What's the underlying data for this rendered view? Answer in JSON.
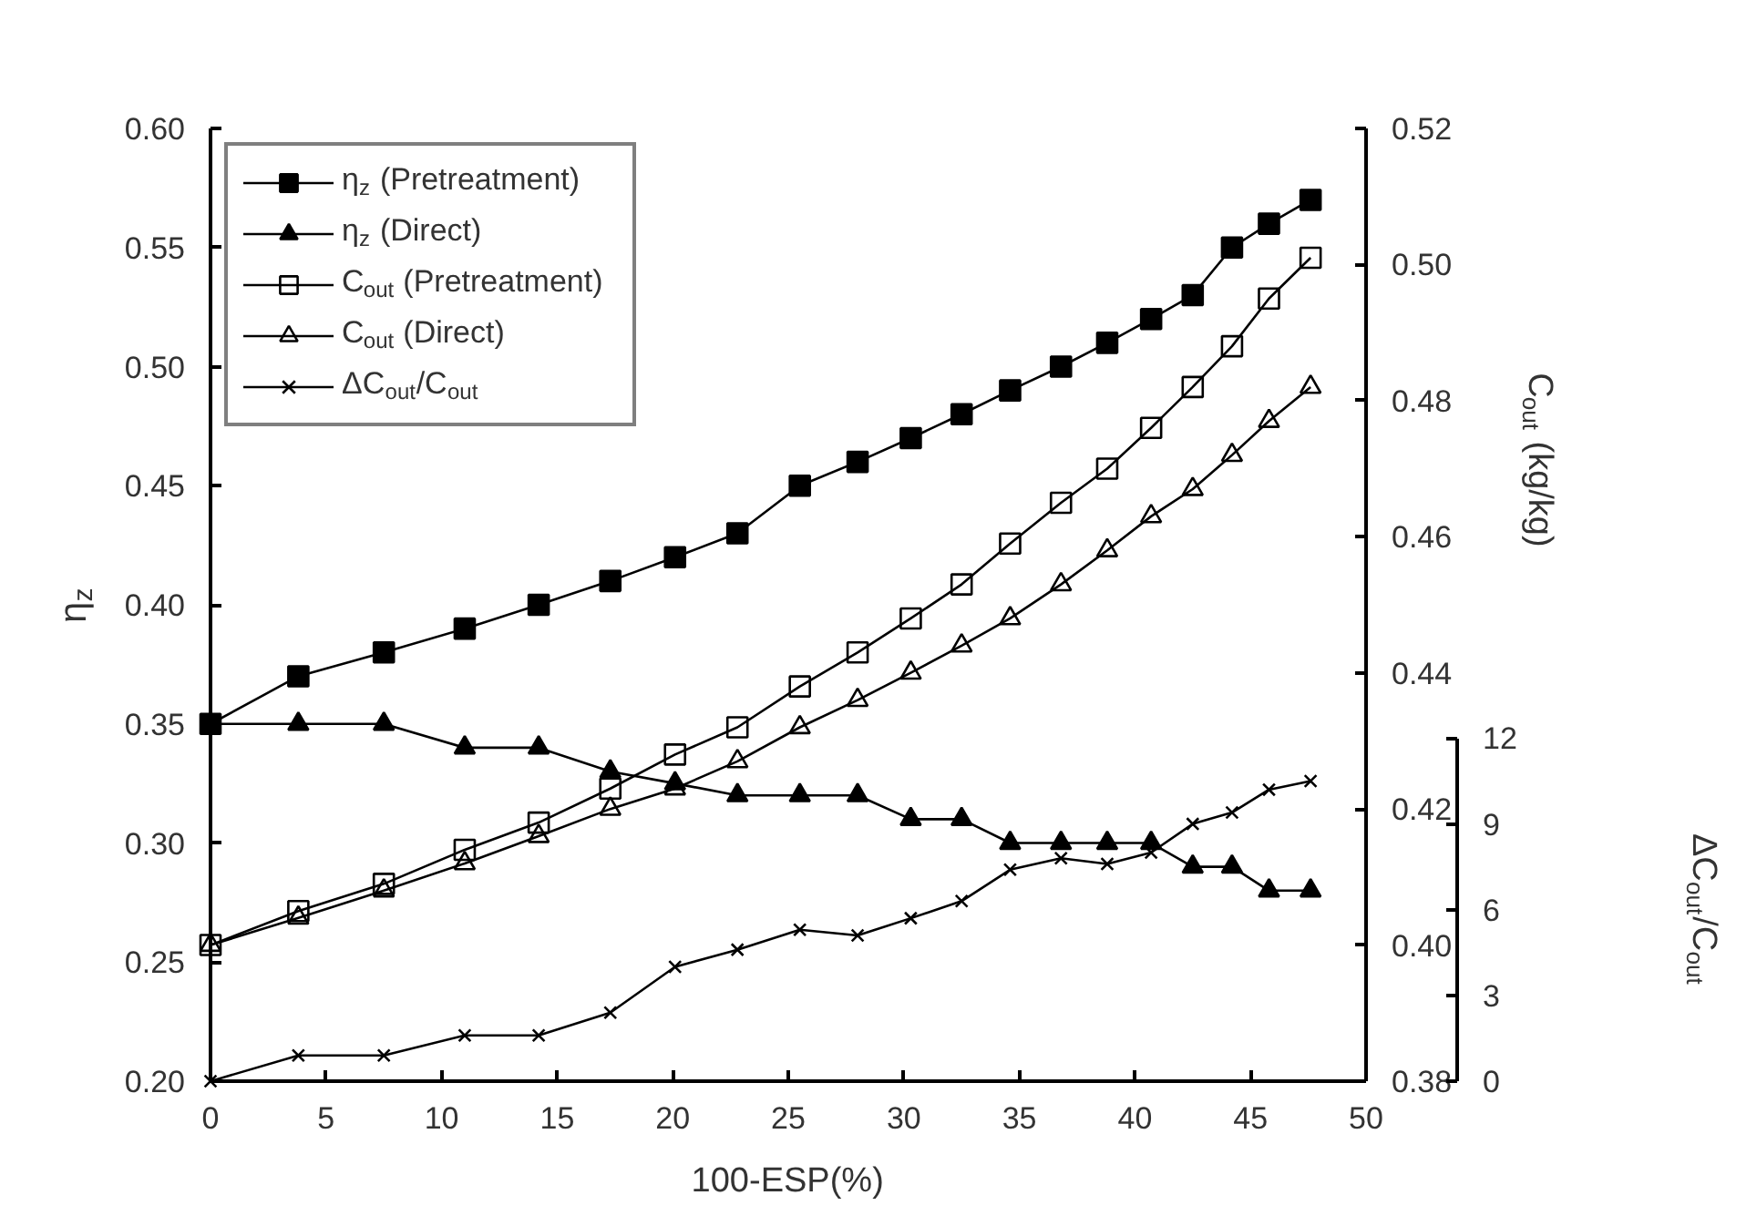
{
  "chart_data": {
    "type": "line",
    "xlabel": "100-ESP(%)",
    "ylabel": "η$_{z}$",
    "y2label": "C$_{out}$ (kg/kg)",
    "y3label": "ΔC$_{out}$/C$_{out}$",
    "x": [
      0,
      3.8,
      7.5,
      11.0,
      14.2,
      17.3,
      20.1,
      22.8,
      25.5,
      28.0,
      30.3,
      32.5,
      34.6,
      36.8,
      38.8,
      40.7,
      42.5,
      44.2,
      45.8,
      47.6
    ],
    "xlim": [
      0,
      50
    ],
    "xticks": [
      0,
      5,
      10,
      15,
      20,
      25,
      30,
      35,
      40,
      45,
      50
    ],
    "ylim": [
      0.2,
      0.6
    ],
    "yticks": [
      {
        "value": 0.2,
        "label": "0.20"
      },
      {
        "value": 0.25,
        "label": "0.25"
      },
      {
        "value": 0.3,
        "label": "0.30"
      },
      {
        "value": 0.35,
        "label": "0.35"
      },
      {
        "value": 0.4,
        "label": "0.40"
      },
      {
        "value": 0.45,
        "label": "0.45"
      },
      {
        "value": 0.5,
        "label": "0.50"
      },
      {
        "value": 0.55,
        "label": "0.55"
      },
      {
        "value": 0.6,
        "label": "0.60"
      }
    ],
    "y2lim": [
      0.38,
      0.52
    ],
    "y2ticks": [
      0.38,
      {
        "value": 0.4,
        "label": "0.40"
      },
      0.42,
      0.44,
      0.46,
      0.48,
      {
        "value": 0.5,
        "label": "0.50"
      },
      0.52
    ],
    "y3lim": [
      0,
      12
    ],
    "y3ticks": [
      0,
      3,
      6,
      9,
      12
    ],
    "grid": false,
    "legend": "top left",
    "line_style": "solid",
    "series": [
      {
        "name": "η$_{z}$ (Pretreatment)",
        "color": "#000000",
        "marker": "square",
        "values": [
          0.35,
          0.37,
          0.38,
          0.39,
          0.4,
          0.41,
          0.42,
          0.43,
          0.45,
          0.46,
          0.47,
          0.48,
          0.49,
          0.5,
          0.51,
          0.52,
          0.53,
          0.55,
          0.56,
          0.57
        ]
      },
      {
        "name": "η$_{z}$ (Direct)",
        "color": "#000000",
        "marker": "triangle",
        "values": [
          0.35,
          0.35,
          0.35,
          0.34,
          0.34,
          0.33,
          0.325,
          0.32,
          0.32,
          0.32,
          0.31,
          0.31,
          0.3,
          0.3,
          0.3,
          0.3,
          0.29,
          0.29,
          0.28,
          0.28
        ]
      },
      {
        "name": "C$_{out}$ (Pretreatment)",
        "color": "#000000",
        "marker": "square",
        "axis": "y2",
        "values": [
          0.4,
          0.405,
          0.409,
          0.414,
          0.418,
          0.423,
          0.428,
          0.432,
          0.438,
          0.443,
          0.448,
          0.453,
          0.459,
          0.465,
          0.47,
          0.476,
          0.482,
          0.488,
          0.495,
          0.501
        ]
      },
      {
        "name": "C$_{out}$ (Direct)",
        "color": "#000000",
        "marker": "triangle",
        "axis": "y2",
        "values": [
          0.4,
          0.404,
          0.408,
          0.412,
          0.416,
          0.42,
          0.423,
          0.427,
          0.432,
          0.436,
          0.44,
          0.444,
          0.448,
          0.453,
          0.458,
          0.463,
          0.467,
          0.472,
          0.477,
          0.482
        ]
      },
      {
        "name": "ΔC$_{out}$/C$_{out}$",
        "color": "#000000",
        "marker": "cross",
        "axis": "y3",
        "values": [
          0,
          0.9,
          0.9,
          1.6,
          1.6,
          2.4,
          4.0,
          4.6,
          5.3,
          5.1,
          5.7,
          6.3,
          7.4,
          7.8,
          7.6,
          8.0,
          9.0,
          9.4,
          10.2,
          10.5
        ]
      }
    ]
  }
}
